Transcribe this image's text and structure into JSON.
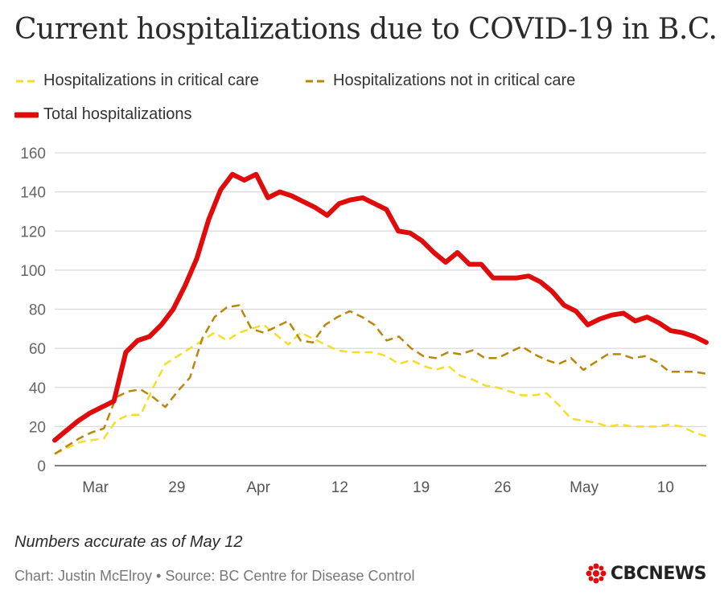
{
  "title": "Current hospitalizations due to COVID-19 in B.C.",
  "legend": {
    "critical": "Hospitalizations in critical care",
    "not_critical": "Hospitalizations not in critical care",
    "total": "Total hospitalizations"
  },
  "footer": {
    "note": "Numbers accurate as of May 12",
    "credit": "Chart: Justin McElroy • Source: BC Centre for Disease Control",
    "brand": "CBCNEWS"
  },
  "colors": {
    "total": "#e00b0b",
    "critical": "#f5dc2a",
    "not_critical": "#b8860b",
    "grid": "#d9d9d9",
    "axis": "#555555"
  },
  "chart_data": {
    "type": "line",
    "title": "Current hospitalizations due to COVID-19 in B.C.",
    "xlabel": "",
    "ylabel": "",
    "ylim": [
      0,
      160
    ],
    "yticks": [
      0,
      20,
      40,
      60,
      80,
      100,
      120,
      140,
      160
    ],
    "xlim": [
      0,
      64
    ],
    "xticks": [
      {
        "label": "Mar",
        "x": 4
      },
      {
        "label": "29",
        "x": 12
      },
      {
        "label": "Apr",
        "x": 20
      },
      {
        "label": "12",
        "x": 28
      },
      {
        "label": "19",
        "x": 36
      },
      {
        "label": "26",
        "x": 44
      },
      {
        "label": "May",
        "x": 52
      },
      {
        "label": "10",
        "x": 60
      }
    ],
    "series": [
      {
        "name": "Hospitalizations in critical care",
        "style": "dashed",
        "colorKey": "critical",
        "values": [
          6,
          9,
          12,
          13,
          14,
          23,
          26,
          26,
          40,
          52,
          56,
          60,
          64,
          68,
          64,
          68,
          70,
          72,
          67,
          62,
          68,
          65,
          62,
          59,
          58,
          58,
          58,
          56,
          52,
          54,
          51,
          49,
          51,
          46,
          44,
          41,
          40,
          38,
          36,
          36,
          37,
          31,
          24,
          23,
          22,
          20,
          21,
          20,
          20,
          20,
          21,
          20,
          17,
          15
        ]
      },
      {
        "name": "Hospitalizations not in critical care",
        "style": "dashed",
        "colorKey": "not_critical",
        "values": [
          6,
          10,
          14,
          17,
          19,
          35,
          38,
          39,
          35,
          30,
          38,
          45,
          65,
          76,
          81,
          82,
          70,
          68,
          71,
          74,
          64,
          63,
          72,
          76,
          79,
          76,
          72,
          64,
          66,
          60,
          56,
          55,
          58,
          57,
          59,
          55,
          55,
          58,
          61,
          57,
          54,
          52,
          55,
          49,
          53,
          57,
          57,
          55,
          56,
          53,
          48,
          48,
          48,
          47
        ]
      },
      {
        "name": "Total hospitalizations",
        "style": "solid",
        "colorKey": "total",
        "values": [
          13,
          18,
          23,
          27,
          30,
          33,
          58,
          64,
          66,
          72,
          80,
          92,
          106,
          126,
          141,
          149,
          146,
          149,
          137,
          140,
          138,
          135,
          132,
          128,
          134,
          136,
          137,
          134,
          131,
          120,
          119,
          115,
          109,
          104,
          109,
          103,
          103,
          96,
          96,
          96,
          97,
          94,
          89,
          82,
          79,
          72,
          75,
          77,
          78,
          74,
          76,
          73,
          69,
          68,
          66,
          63
        ]
      }
    ]
  }
}
